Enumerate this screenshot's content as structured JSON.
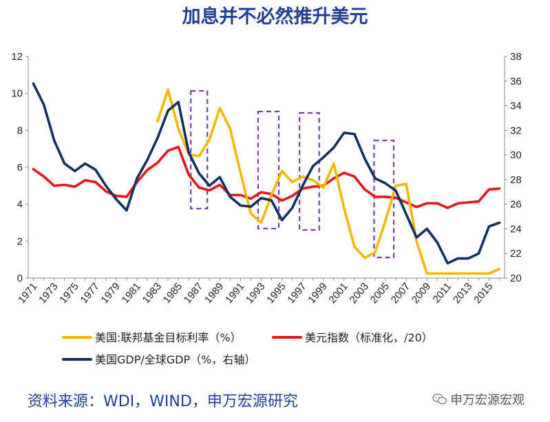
{
  "title": "加息并不必然推升美元",
  "source": "资料来源：WDI，WIND，申万宏源研究",
  "watermark": "申万宏源宏观",
  "chart_data": {
    "type": "line",
    "title": "加息并不必然推升美元",
    "x": [
      1971,
      1972,
      1973,
      1974,
      1975,
      1976,
      1977,
      1978,
      1979,
      1980,
      1981,
      1982,
      1983,
      1984,
      1985,
      1986,
      1987,
      1988,
      1989,
      1990,
      1991,
      1992,
      1993,
      1994,
      1995,
      1996,
      1997,
      1998,
      1999,
      2000,
      2001,
      2002,
      2003,
      2004,
      2005,
      2006,
      2007,
      2008,
      2009,
      2010,
      2011,
      2012,
      2013,
      2014,
      2015,
      2016
    ],
    "x_tick_labels": [
      "1971",
      "1973",
      "1975",
      "1977",
      "1979",
      "1981",
      "1983",
      "1985",
      "1987",
      "1989",
      "1991",
      "1993",
      "1995",
      "1997",
      "1999",
      "2001",
      "2003",
      "2005",
      "2007",
      "2009",
      "2011",
      "2013",
      "2015"
    ],
    "y_left": {
      "range": [
        0,
        12
      ],
      "ticks": [
        "0",
        "2",
        "4",
        "6",
        "8",
        "10",
        "12"
      ]
    },
    "y_right": {
      "range": [
        20,
        38
      ],
      "ticks": [
        "20",
        "22",
        "24",
        "26",
        "28",
        "30",
        "32",
        "34",
        "36",
        "38"
      ]
    },
    "series": [
      {
        "name": "美国:联邦基金目标利率（%）",
        "axis": "left",
        "color": "#f5b800",
        "values": [
          null,
          null,
          null,
          null,
          null,
          null,
          null,
          null,
          null,
          null,
          null,
          null,
          8.5,
          10.2,
          8.1,
          6.7,
          6.6,
          7.5,
          9.2,
          8.1,
          5.7,
          3.5,
          3.0,
          4.5,
          5.8,
          5.2,
          5.5,
          5.3,
          4.9,
          6.2,
          3.8,
          1.7,
          1.1,
          1.4,
          3.1,
          5.0,
          5.1,
          2.0,
          0.25,
          0.25,
          0.25,
          0.25,
          0.25,
          0.25,
          0.25,
          0.5
        ]
      },
      {
        "name": "美元指数（标准化，/20）",
        "axis": "left",
        "color": "#e8141b",
        "values": [
          5.9,
          5.5,
          5.0,
          5.05,
          4.95,
          5.3,
          5.2,
          4.7,
          4.45,
          4.4,
          5.2,
          5.85,
          6.25,
          6.9,
          7.1,
          5.6,
          4.9,
          4.75,
          5.05,
          4.5,
          4.5,
          4.3,
          4.65,
          4.55,
          4.2,
          4.45,
          4.85,
          4.95,
          5.0,
          5.4,
          5.7,
          5.5,
          4.8,
          4.4,
          4.4,
          4.35,
          4.1,
          3.85,
          4.05,
          4.05,
          3.8,
          4.05,
          4.1,
          4.15,
          4.8,
          4.85
        ]
      },
      {
        "name": "美国GDP/全球GDP（%，右轴）",
        "axis": "right",
        "color": "#12305e",
        "values": [
          35.8,
          34.1,
          31.2,
          29.3,
          28.7,
          29.3,
          28.8,
          27.5,
          26.4,
          25.5,
          28.1,
          29.6,
          31.4,
          33.6,
          34.3,
          30.2,
          28.5,
          27.5,
          28.2,
          26.6,
          25.9,
          25.8,
          26.5,
          26.3,
          24.7,
          25.7,
          27.5,
          29.1,
          29.8,
          30.6,
          31.8,
          31.7,
          29.7,
          28.1,
          27.7,
          27.1,
          25.2,
          23.3,
          24.0,
          22.9,
          21.2,
          21.6,
          21.6,
          22.0,
          24.2,
          24.5
        ]
      }
    ],
    "highlight_boxes_years": [
      [
        1986.2,
        1987.8
      ],
      [
        1992.7,
        1994.7
      ],
      [
        1996.7,
        1998.6
      ],
      [
        2003.9,
        2005.8
      ]
    ],
    "legend_placement": "bottom",
    "grid": false
  }
}
